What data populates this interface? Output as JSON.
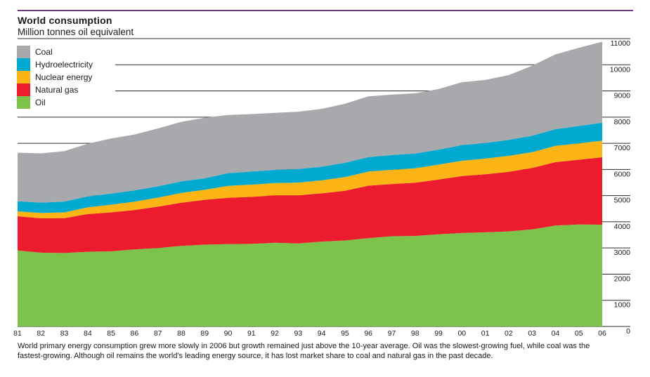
{
  "header": {
    "title": "World consumption",
    "subtitle": "Million tonnes oil equivalent"
  },
  "legend": {
    "items": [
      {
        "id": "coal",
        "label": "Coal",
        "color": "#a7a9ac"
      },
      {
        "id": "hydroelectricity",
        "label": "Hydroelectricity",
        "color": "#00a9d0"
      },
      {
        "id": "nuclear-energy",
        "label": "Nuclear energy",
        "color": "#fcb514"
      },
      {
        "id": "natural-gas",
        "label": "Natural gas",
        "color": "#ed1b2e"
      },
      {
        "id": "oil",
        "label": "Oil",
        "color": "#7dc24b"
      }
    ]
  },
  "caption": "World primary energy consumption grew more slowly in 2006 but growth remained just above the 10-year average. Oil was the slowest-growing fuel, while coal was the fastest-growing. Although oil remains the world's leading energy source, it has lost market share to coal and natural gas in the past decade.",
  "colors": {
    "top_rule": "#6d3a80",
    "grid": "#2e2b2c",
    "text": "#1a1a1a",
    "background": "#ffffff"
  },
  "chart_data": {
    "type": "area",
    "stacked": true,
    "title": "World consumption",
    "ylabel": "Million tonnes oil equivalent",
    "xlabel": "",
    "x_labels": [
      "81",
      "82",
      "83",
      "84",
      "85",
      "86",
      "87",
      "88",
      "89",
      "90",
      "91",
      "92",
      "93",
      "94",
      "95",
      "96",
      "97",
      "98",
      "99",
      "00",
      "01",
      "02",
      "03",
      "04",
      "05",
      "06"
    ],
    "ylim": [
      0,
      11000
    ],
    "ytick_step": 1000,
    "grid": "horizontal-behind-areas",
    "legend_position": "top-left",
    "series": [
      {
        "id": "oil",
        "name": "Oil",
        "color": "#7dc24b",
        "values": [
          2904,
          2821,
          2806,
          2854,
          2871,
          2947,
          2998,
          3080,
          3126,
          3149,
          3154,
          3198,
          3174,
          3243,
          3287,
          3374,
          3447,
          3458,
          3523,
          3571,
          3597,
          3632,
          3707,
          3859,
          3897,
          3890
        ]
      },
      {
        "id": "natural-gas",
        "name": "Natural gas",
        "color": "#ed1b2e",
        "values": [
          1307,
          1312,
          1330,
          1441,
          1488,
          1503,
          1578,
          1651,
          1713,
          1769,
          1798,
          1810,
          1835,
          1843,
          1900,
          2005,
          1998,
          2034,
          2091,
          2176,
          2216,
          2276,
          2352,
          2420,
          2474,
          2575
        ]
      },
      {
        "id": "nuclear-energy",
        "name": "Nuclear energy",
        "color": "#fcb514",
        "values": [
          189,
          203,
          225,
          255,
          294,
          320,
          347,
          372,
          381,
          453,
          468,
          474,
          489,
          498,
          522,
          540,
          541,
          551,
          571,
          585,
          601,
          611,
          599,
          625,
          627,
          635
        ]
      },
      {
        "id": "hydroelectricity",
        "name": "Hydroelectricity",
        "color": "#00a9d0",
        "values": [
          387,
          398,
          412,
          420,
          424,
          428,
          431,
          441,
          441,
          489,
          499,
          500,
          518,
          520,
          544,
          551,
          562,
          567,
          569,
          601,
          595,
          610,
          630,
          634,
          661,
          688
        ]
      },
      {
        "id": "coal",
        "name": "Coal",
        "color": "#a7a9ac",
        "values": [
          1854,
          1880,
          1929,
          2013,
          2107,
          2136,
          2213,
          2278,
          2312,
          2220,
          2196,
          2183,
          2190,
          2211,
          2261,
          2324,
          2314,
          2300,
          2316,
          2400,
          2412,
          2476,
          2677,
          2858,
          2990,
          3090
        ]
      }
    ]
  }
}
